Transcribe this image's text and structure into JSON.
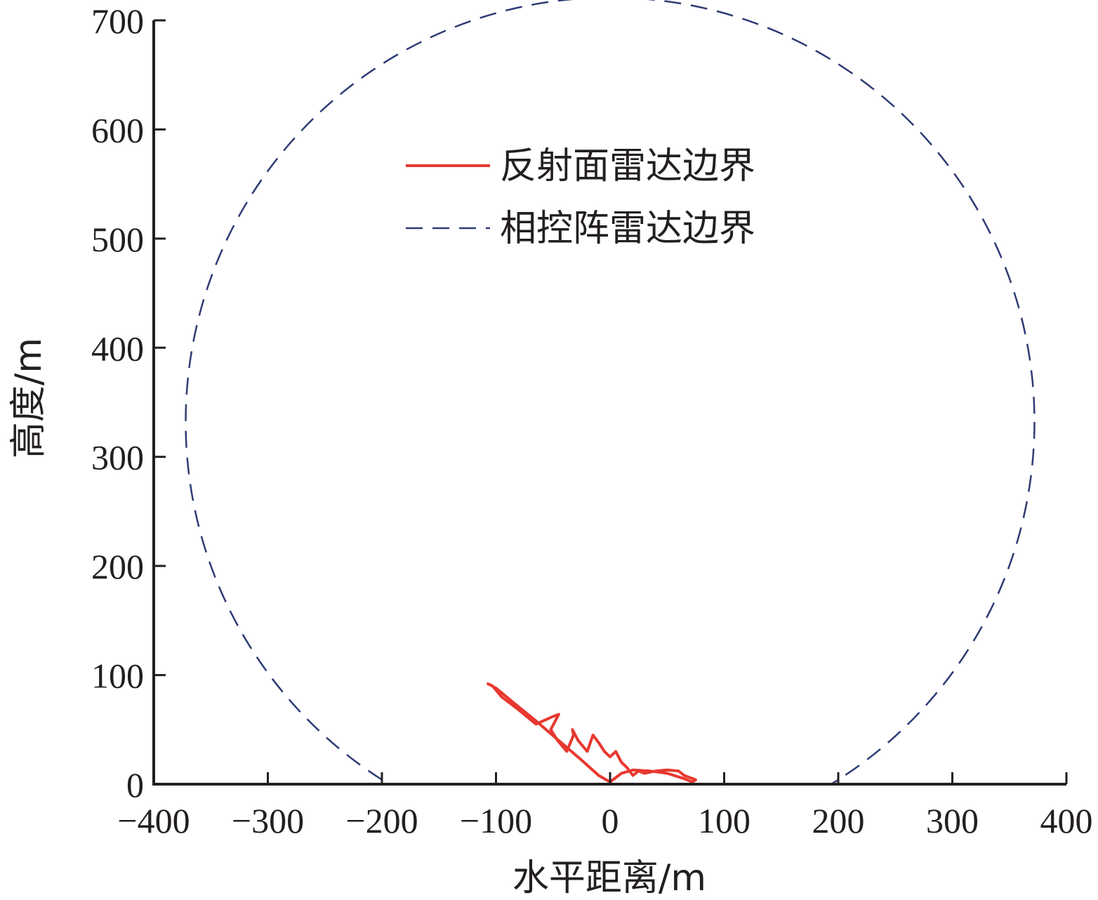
{
  "chart_data": {
    "type": "line",
    "xlabel": "水平距离/m",
    "ylabel": "高度/m",
    "xlim": [
      -400,
      400
    ],
    "ylim": [
      0,
      700
    ],
    "xticks": [
      -400,
      -300,
      -200,
      -100,
      0,
      100,
      200,
      300,
      400
    ],
    "yticks": [
      0,
      100,
      200,
      300,
      400,
      500,
      600,
      700
    ],
    "xtick_labels": [
      "−400",
      "−300",
      "−200",
      "−100",
      "0",
      "100",
      "200",
      "300",
      "400"
    ],
    "ytick_labels": [
      "0",
      "100",
      "200",
      "300",
      "400",
      "500",
      "600",
      "700"
    ],
    "grid": false,
    "legend_position": "top-center",
    "series": [
      {
        "name": "反射面雷达边界",
        "color": "#e8382f",
        "style": "solid",
        "x": [
          0,
          -10,
          -25,
          -45,
          -65,
          -85,
          -100,
          -107,
          -103,
          -95,
          -80,
          -65,
          -50,
          -45,
          -52,
          -46,
          -38,
          -32,
          -33,
          -28,
          -20,
          -15,
          -10,
          -5,
          0,
          5,
          10,
          15,
          20,
          25,
          30,
          40,
          50,
          60,
          65,
          75,
          72,
          65,
          50,
          35,
          20,
          10,
          0
        ],
        "y": [
          2,
          8,
          22,
          40,
          58,
          75,
          88,
          92,
          90,
          80,
          68,
          55,
          62,
          64,
          50,
          40,
          30,
          45,
          50,
          40,
          30,
          45,
          38,
          30,
          25,
          30,
          20,
          15,
          8,
          12,
          10,
          12,
          13,
          12,
          8,
          4,
          2,
          5,
          10,
          12,
          13,
          10,
          2
        ]
      },
      {
        "name": "相控阵雷达边界",
        "color": "#2e3b75",
        "style": "dashed",
        "cx": 0,
        "cy": 332,
        "r": 372
      }
    ]
  }
}
